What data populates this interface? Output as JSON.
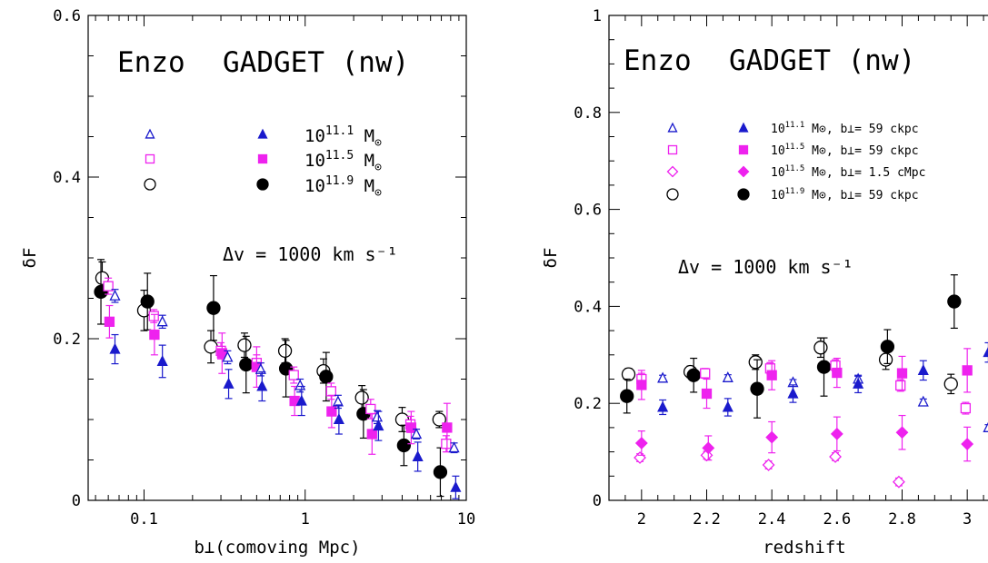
{
  "chart_data": [
    {
      "type": "scatter",
      "panel": "left",
      "xlabel": "b⊥(comoving Mpc)",
      "ylabel": "δF",
      "xscale": "log",
      "xlim": [
        0.045,
        10
      ],
      "ylim": [
        0,
        0.6
      ],
      "xticks": [
        0.1,
        1,
        10
      ],
      "xtick_labels": [
        "0.1",
        "1",
        "10"
      ],
      "yticks": [
        0,
        0.2,
        0.4,
        0.6
      ],
      "ytick_labels": [
        "0",
        "0.2",
        "0.4",
        "0.6"
      ],
      "annotations": {
        "title_a": "Enzo",
        "title_b": "GADGET (nw)",
        "velocity": "Δv = 1000 km s⁻¹"
      },
      "legend": [
        {
          "open": "triangle",
          "filled": "triangle",
          "color": "#1a1acc",
          "label_main": "10",
          "label_sup": "11.1",
          "label_unit": "M",
          "label_sub": "⊙"
        },
        {
          "open": "square",
          "filled": "square",
          "color": "#ee22ee",
          "label_main": "10",
          "label_sup": "11.5",
          "label_unit": "M",
          "label_sub": "⊙"
        },
        {
          "open": "circle",
          "filled": "circle",
          "color": "#000000",
          "label_main": "10",
          "label_sup": "11.9",
          "label_unit": "M",
          "label_sub": "⊙"
        }
      ],
      "series": [
        {
          "marker": "circle",
          "fill": "open",
          "color": "#000000",
          "size": 7,
          "points": [
            [
              0.055,
              0.275,
              0.02
            ],
            [
              0.1,
              0.235,
              0.025
            ],
            [
              0.26,
              0.19,
              0.02
            ],
            [
              0.42,
              0.192,
              0.015
            ],
            [
              0.75,
              0.185,
              0.015
            ],
            [
              1.3,
              0.16,
              0.015
            ],
            [
              2.25,
              0.127,
              0.015
            ],
            [
              4.0,
              0.1,
              0.015
            ],
            [
              6.8,
              0.1,
              0.01
            ]
          ]
        },
        {
          "marker": "circle",
          "fill": "filled",
          "color": "#000000",
          "size": 7,
          "points": [
            [
              0.054,
              0.258,
              0.04
            ],
            [
              0.105,
              0.246,
              0.035
            ],
            [
              0.27,
              0.238,
              0.04
            ],
            [
              0.43,
              0.168,
              0.035
            ],
            [
              0.76,
              0.163,
              0.035
            ],
            [
              1.35,
              0.153,
              0.03
            ],
            [
              2.3,
              0.107,
              0.03
            ],
            [
              4.1,
              0.068,
              0.025
            ],
            [
              6.9,
              0.035,
              0.03
            ]
          ]
        },
        {
          "marker": "square",
          "fill": "open",
          "color": "#ee22ee",
          "size": 5,
          "points": [
            [
              0.06,
              0.265,
              0.01
            ],
            [
              0.115,
              0.228,
              0.008
            ],
            [
              0.3,
              0.185,
              0.01
            ],
            [
              0.5,
              0.17,
              0.01
            ],
            [
              0.85,
              0.155,
              0.01
            ],
            [
              1.45,
              0.135,
              0.01
            ],
            [
              2.55,
              0.113,
              0.012
            ],
            [
              4.5,
              0.094,
              0.01
            ],
            [
              7.5,
              0.07,
              0.01
            ]
          ]
        },
        {
          "marker": "square",
          "fill": "filled",
          "color": "#ee22ee",
          "size": 5,
          "points": [
            [
              0.061,
              0.221,
              0.02
            ],
            [
              0.116,
              0.205,
              0.025
            ],
            [
              0.305,
              0.182,
              0.025
            ],
            [
              0.5,
              0.165,
              0.025
            ],
            [
              0.86,
              0.123,
              0.018
            ],
            [
              1.46,
              0.11,
              0.02
            ],
            [
              2.6,
              0.082,
              0.025
            ],
            [
              4.55,
              0.09,
              0.02
            ],
            [
              7.6,
              0.09,
              0.03
            ]
          ]
        },
        {
          "marker": "triangle",
          "fill": "open",
          "color": "#1a1acc",
          "size": 5,
          "points": [
            [
              0.066,
              0.253,
              0.008
            ],
            [
              0.13,
              0.221,
              0.008
            ],
            [
              0.33,
              0.177,
              0.008
            ],
            [
              0.53,
              0.162,
              0.008
            ],
            [
              0.93,
              0.142,
              0.008
            ],
            [
              1.6,
              0.122,
              0.008
            ],
            [
              2.8,
              0.103,
              0.008
            ],
            [
              4.9,
              0.082,
              0.006
            ],
            [
              8.4,
              0.065,
              0.006
            ]
          ]
        },
        {
          "marker": "triangle",
          "fill": "filled",
          "color": "#1a1acc",
          "size": 5,
          "points": [
            [
              0.066,
              0.187,
              0.018
            ],
            [
              0.13,
              0.172,
              0.02
            ],
            [
              0.335,
              0.144,
              0.018
            ],
            [
              0.54,
              0.141,
              0.018
            ],
            [
              0.95,
              0.123,
              0.018
            ],
            [
              1.62,
              0.1,
              0.018
            ],
            [
              2.85,
              0.092,
              0.018
            ],
            [
              5.0,
              0.054,
              0.018
            ],
            [
              8.6,
              0.016,
              0.014
            ]
          ]
        }
      ]
    },
    {
      "type": "scatter",
      "panel": "right",
      "xlabel": "redshift",
      "ylabel": "δF",
      "xscale": "linear",
      "xlim": [
        1.9,
        3.1
      ],
      "ylim": [
        0,
        1
      ],
      "xticks": [
        2,
        2.2,
        2.4,
        2.6,
        2.8,
        3
      ],
      "xtick_labels": [
        "2",
        "2.2",
        "2.4",
        "2.6",
        "2.8",
        "3"
      ],
      "yticks": [
        0,
        0.2,
        0.4,
        0.6,
        0.8,
        1
      ],
      "ytick_labels": [
        "0",
        "0.2",
        "0.4",
        "0.6",
        "0.8",
        "1"
      ],
      "annotations": {
        "title_a": "Enzo",
        "title_b": "GADGET (nw)",
        "velocity": "Δv = 1000 km s⁻¹"
      },
      "legend": [
        {
          "open": "triangle",
          "filled": "triangle",
          "color": "#1a1acc",
          "label_main": "10",
          "label_sup": "11.1",
          "label_rest": "M⊙, b⊥= 59 ckpc"
        },
        {
          "open": "square",
          "filled": "square",
          "color": "#ee22ee",
          "label_main": "10",
          "label_sup": "11.5",
          "label_rest": "M⊙, b⊥= 59 ckpc"
        },
        {
          "open": "diamond",
          "filled": "diamond",
          "color": "#ee22ee",
          "label_main": "10",
          "label_sup": "11.5",
          "label_rest": "M⊙, b⊥= 1.5 cMpc"
        },
        {
          "open": "circle",
          "filled": "circle",
          "color": "#000000",
          "label_main": "10",
          "label_sup": "11.9",
          "label_rest": "M⊙, b⊥= 59 ckpc"
        }
      ],
      "series": [
        {
          "marker": "circle",
          "fill": "open",
          "color": "#000000",
          "size": 7,
          "points": [
            [
              1.96,
              0.26,
              0.012
            ],
            [
              2.15,
              0.265,
              0.012
            ],
            [
              2.35,
              0.285,
              0.015
            ],
            [
              2.55,
              0.315,
              0.02
            ],
            [
              2.75,
              0.29,
              0.02
            ],
            [
              2.95,
              0.24,
              0.02
            ]
          ]
        },
        {
          "marker": "circle",
          "fill": "filled",
          "color": "#000000",
          "size": 7,
          "points": [
            [
              1.955,
              0.215,
              0.035
            ],
            [
              2.16,
              0.258,
              0.035
            ],
            [
              2.355,
              0.23,
              0.06
            ],
            [
              2.56,
              0.275,
              0.06
            ],
            [
              2.755,
              0.317,
              0.035
            ],
            [
              2.96,
              0.41,
              0.055
            ]
          ]
        },
        {
          "marker": "square",
          "fill": "open",
          "color": "#ee22ee",
          "size": 5,
          "points": [
            [
              2.0,
              0.25,
              0.012
            ],
            [
              2.195,
              0.262,
              0.01
            ],
            [
              2.395,
              0.272,
              0.012
            ],
            [
              2.595,
              0.278,
              0.012
            ],
            [
              2.795,
              0.237,
              0.012
            ],
            [
              2.995,
              0.19,
              0.012
            ]
          ]
        },
        {
          "marker": "square",
          "fill": "filled",
          "color": "#ee22ee",
          "size": 5,
          "points": [
            [
              2.0,
              0.238,
              0.03
            ],
            [
              2.2,
              0.22,
              0.03
            ],
            [
              2.4,
              0.258,
              0.03
            ],
            [
              2.6,
              0.263,
              0.03
            ],
            [
              2.8,
              0.262,
              0.035
            ],
            [
              3.0,
              0.268,
              0.045
            ]
          ]
        },
        {
          "marker": "diamond",
          "fill": "open",
          "color": "#ee22ee",
          "size": 6,
          "points": [
            [
              1.995,
              0.088,
              0.008
            ],
            [
              2.2,
              0.093,
              0.008
            ],
            [
              2.39,
              0.073,
              0.008
            ],
            [
              2.595,
              0.09,
              0.008
            ],
            [
              2.79,
              0.038,
              0.008
            ]
          ]
        },
        {
          "marker": "diamond",
          "fill": "filled",
          "color": "#ee22ee",
          "size": 6,
          "points": [
            [
              2.0,
              0.118,
              0.025
            ],
            [
              2.205,
              0.108,
              0.025
            ],
            [
              2.4,
              0.13,
              0.032
            ],
            [
              2.6,
              0.137,
              0.035
            ],
            [
              2.8,
              0.14,
              0.035
            ],
            [
              3.0,
              0.116,
              0.035
            ]
          ]
        },
        {
          "marker": "triangle",
          "fill": "open",
          "color": "#1a1acc",
          "size": 5,
          "points": [
            [
              2.065,
              0.252,
              0.006
            ],
            [
              2.265,
              0.253,
              0.006
            ],
            [
              2.465,
              0.243,
              0.006
            ],
            [
              2.665,
              0.25,
              0.006
            ],
            [
              2.865,
              0.203,
              0.006
            ],
            [
              3.065,
              0.15,
              0.006
            ]
          ]
        },
        {
          "marker": "triangle",
          "fill": "filled",
          "color": "#1a1acc",
          "size": 5,
          "points": [
            [
              2.065,
              0.192,
              0.015
            ],
            [
              2.265,
              0.192,
              0.018
            ],
            [
              2.465,
              0.22,
              0.018
            ],
            [
              2.665,
              0.24,
              0.018
            ],
            [
              2.865,
              0.268,
              0.02
            ],
            [
              3.065,
              0.305,
              0.02
            ]
          ]
        }
      ]
    }
  ]
}
